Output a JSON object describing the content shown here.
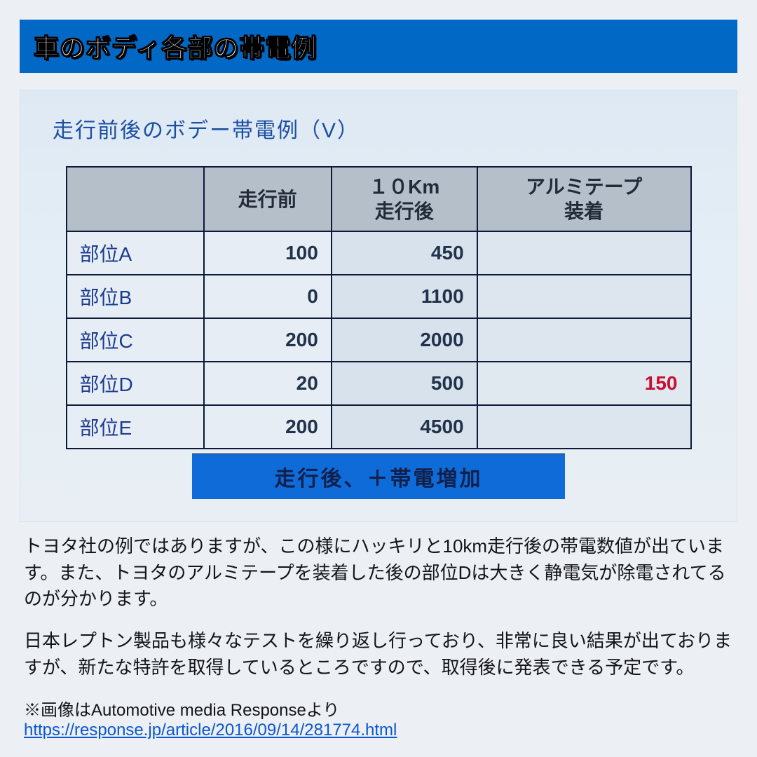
{
  "header": {
    "title": "車のボディ各部の帯電例"
  },
  "slide": {
    "subtitle": "走行前後のボデー帯電例（V）",
    "summary": "走行後、＋帯電増加"
  },
  "table": {
    "columns": [
      "",
      "走行前",
      "１０Km\n走行後",
      "アルミテープ\n装着"
    ],
    "col_widths": [
      "22%",
      "26%",
      "26%",
      "26%"
    ],
    "header_bg": "#b4bfca",
    "header_color": "#242b38",
    "border_color": "#0d1a38",
    "rowlabel_color": "#1b3a90",
    "cell_color": "#22324a",
    "highlight_color": "#c8102e",
    "cell_bg": "#e6edf4",
    "after_bg": "#d7e2ed",
    "aluminum_bg": "#dde6ef",
    "font_size": 28,
    "rows": [
      {
        "label": "部位A",
        "before": "100",
        "after": "450",
        "aluminum": ""
      },
      {
        "label": "部位B",
        "before": "0",
        "after": "1100",
        "aluminum": ""
      },
      {
        "label": "部位C",
        "before": "200",
        "after": "2000",
        "aluminum": ""
      },
      {
        "label": "部位D",
        "before": "20",
        "after": "500",
        "aluminum": "150",
        "highlight": true
      },
      {
        "label": "部位E",
        "before": "200",
        "after": "4500",
        "aluminum": ""
      }
    ]
  },
  "body": {
    "p1": "トヨタ社の例ではありますが、この様にハッキリと10km走行後の帯電数値が出ています。また、トヨタのアルミテープを装着した後の部位Dは大きく静電気が除電されてるのが分かります。",
    "p2": "日本レプトン製品も様々なテストを繰り返し行っており、非常に良い結果が出ておりますが、新たな特許を取得しているところですので、取得後に発表できる予定です。"
  },
  "footnote": {
    "prefix": "※画像はAutomotive media Responseより",
    "url": "https://response.jp/article/2016/09/14/281774.html"
  },
  "colors": {
    "page_bg": "#ecf0f4",
    "header_bg": "#0168c5",
    "header_title": "#ffffff",
    "header_outline": "#000000",
    "slide_bg_top": "#dfe9f3",
    "slide_bg_bottom": "#e8eef3",
    "subtitle": "#1b4fa2",
    "summary_bg": "#0f6bd8",
    "summary_text": "#10204a",
    "body_text": "#121418",
    "link": "#0b57d0"
  }
}
